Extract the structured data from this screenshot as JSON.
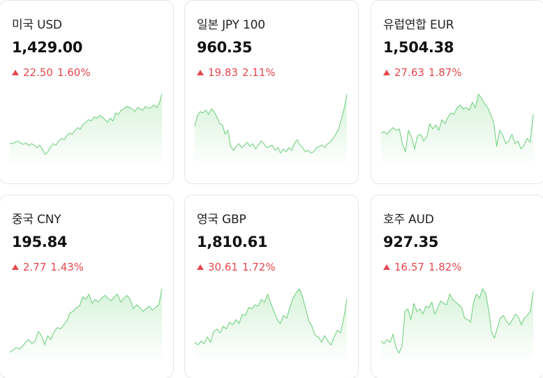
{
  "colors": {
    "up": "#e5484d",
    "line": "#7fd48c",
    "fill_top": "#d6f3d9",
    "fill_bottom": "#ffffff"
  },
  "cards": [
    {
      "name": "미국 USD",
      "price": "1,429.00",
      "change_amount": "22.50",
      "change_percent": "1.60%",
      "direction_icon": "triangle-up-icon",
      "spark": [
        0.27,
        0.26,
        0.28,
        0.3,
        0.27,
        0.25,
        0.27,
        0.23,
        0.26,
        0.24,
        0.2,
        0.24,
        0.18,
        0.1,
        0.14,
        0.21,
        0.26,
        0.24,
        0.3,
        0.34,
        0.32,
        0.38,
        0.42,
        0.4,
        0.46,
        0.5,
        0.48,
        0.55,
        0.58,
        0.62,
        0.6,
        0.66,
        0.64,
        0.68,
        0.66,
        0.62,
        0.58,
        0.64,
        0.6,
        0.72,
        0.7,
        0.76,
        0.78,
        0.82,
        0.8,
        0.78,
        0.74,
        0.8,
        0.78,
        0.76,
        0.82,
        0.79,
        0.8,
        0.84,
        0.8,
        0.86,
        1.0
      ]
    },
    {
      "name": "일본 JPY 100",
      "price": "960.35",
      "change_amount": "19.83",
      "change_percent": "2.11%",
      "direction_icon": "triangle-up-icon",
      "spark": [
        0.52,
        0.68,
        0.74,
        0.72,
        0.76,
        0.7,
        0.78,
        0.74,
        0.66,
        0.56,
        0.54,
        0.4,
        0.46,
        0.22,
        0.16,
        0.22,
        0.26,
        0.2,
        0.24,
        0.28,
        0.22,
        0.26,
        0.18,
        0.24,
        0.3,
        0.26,
        0.2,
        0.22,
        0.24,
        0.16,
        0.2,
        0.12,
        0.18,
        0.14,
        0.2,
        0.16,
        0.26,
        0.32,
        0.24,
        0.2,
        0.14,
        0.16,
        0.12,
        0.14,
        0.2,
        0.22,
        0.24,
        0.2,
        0.26,
        0.28,
        0.34,
        0.4,
        0.48,
        0.62,
        0.78,
        1.0
      ]
    },
    {
      "name": "유럽연합 EUR",
      "price": "1,504.38",
      "change_amount": "27.63",
      "change_percent": "1.87%",
      "direction_icon": "triangle-up-icon",
      "spark": [
        0.42,
        0.44,
        0.4,
        0.46,
        0.5,
        0.46,
        0.48,
        0.26,
        0.14,
        0.46,
        0.36,
        0.18,
        0.38,
        0.4,
        0.3,
        0.36,
        0.56,
        0.48,
        0.54,
        0.46,
        0.62,
        0.56,
        0.66,
        0.72,
        0.7,
        0.8,
        0.84,
        0.78,
        0.8,
        0.76,
        0.88,
        0.8,
        1.0,
        0.94,
        0.86,
        0.8,
        0.7,
        0.58,
        0.22,
        0.46,
        0.38,
        0.26,
        0.3,
        0.4,
        0.26,
        0.3,
        0.18,
        0.24,
        0.34,
        0.28,
        0.7
      ]
    },
    {
      "name": "중국 CNY",
      "price": "195.84",
      "change_amount": "2.77",
      "change_percent": "1.43%",
      "direction_icon": "triangle-up-icon",
      "spark": [
        0.05,
        0.08,
        0.12,
        0.1,
        0.14,
        0.2,
        0.24,
        0.18,
        0.22,
        0.36,
        0.3,
        0.16,
        0.3,
        0.24,
        0.36,
        0.42,
        0.4,
        0.46,
        0.52,
        0.64,
        0.66,
        0.72,
        0.74,
        0.88,
        0.84,
        0.92,
        0.78,
        0.84,
        0.8,
        0.86,
        0.9,
        0.86,
        0.82,
        0.88,
        0.92,
        0.8,
        0.86,
        0.9,
        0.84,
        0.7,
        0.76,
        0.72,
        0.66,
        0.7,
        0.74,
        0.68,
        0.72,
        0.76,
        1.0
      ]
    },
    {
      "name": "영국 GBP",
      "price": "1,810.61",
      "change_amount": "30.61",
      "change_percent": "1.72%",
      "direction_icon": "triangle-up-icon",
      "spark": [
        0.2,
        0.16,
        0.22,
        0.18,
        0.28,
        0.2,
        0.36,
        0.4,
        0.34,
        0.44,
        0.4,
        0.5,
        0.46,
        0.54,
        0.48,
        0.62,
        0.6,
        0.72,
        0.7,
        0.76,
        0.74,
        0.84,
        0.8,
        0.92,
        0.78,
        0.66,
        0.54,
        0.48,
        0.6,
        0.56,
        0.72,
        0.86,
        0.94,
        1.0,
        0.88,
        0.7,
        0.52,
        0.44,
        0.3,
        0.28,
        0.2,
        0.3,
        0.22,
        0.16,
        0.28,
        0.38,
        0.34,
        0.56,
        0.84
      ]
    },
    {
      "name": "호주 AUD",
      "price": "927.35",
      "change_amount": "16.57",
      "change_percent": "1.82%",
      "direction_icon": "triangle-up-icon",
      "spark": [
        0.22,
        0.18,
        0.24,
        0.2,
        0.32,
        0.12,
        0.04,
        0.14,
        0.66,
        0.7,
        0.54,
        0.78,
        0.66,
        0.7,
        0.62,
        0.74,
        0.72,
        0.8,
        0.62,
        0.72,
        0.82,
        0.78,
        0.76,
        0.92,
        0.84,
        0.8,
        0.76,
        0.72,
        0.56,
        0.54,
        0.5,
        0.8,
        0.92,
        0.86,
        1.0,
        0.94,
        0.7,
        0.36,
        0.26,
        0.42,
        0.56,
        0.6,
        0.52,
        0.46,
        0.54,
        0.62,
        0.58,
        0.46,
        0.56,
        0.6,
        0.66,
        0.96
      ]
    }
  ]
}
